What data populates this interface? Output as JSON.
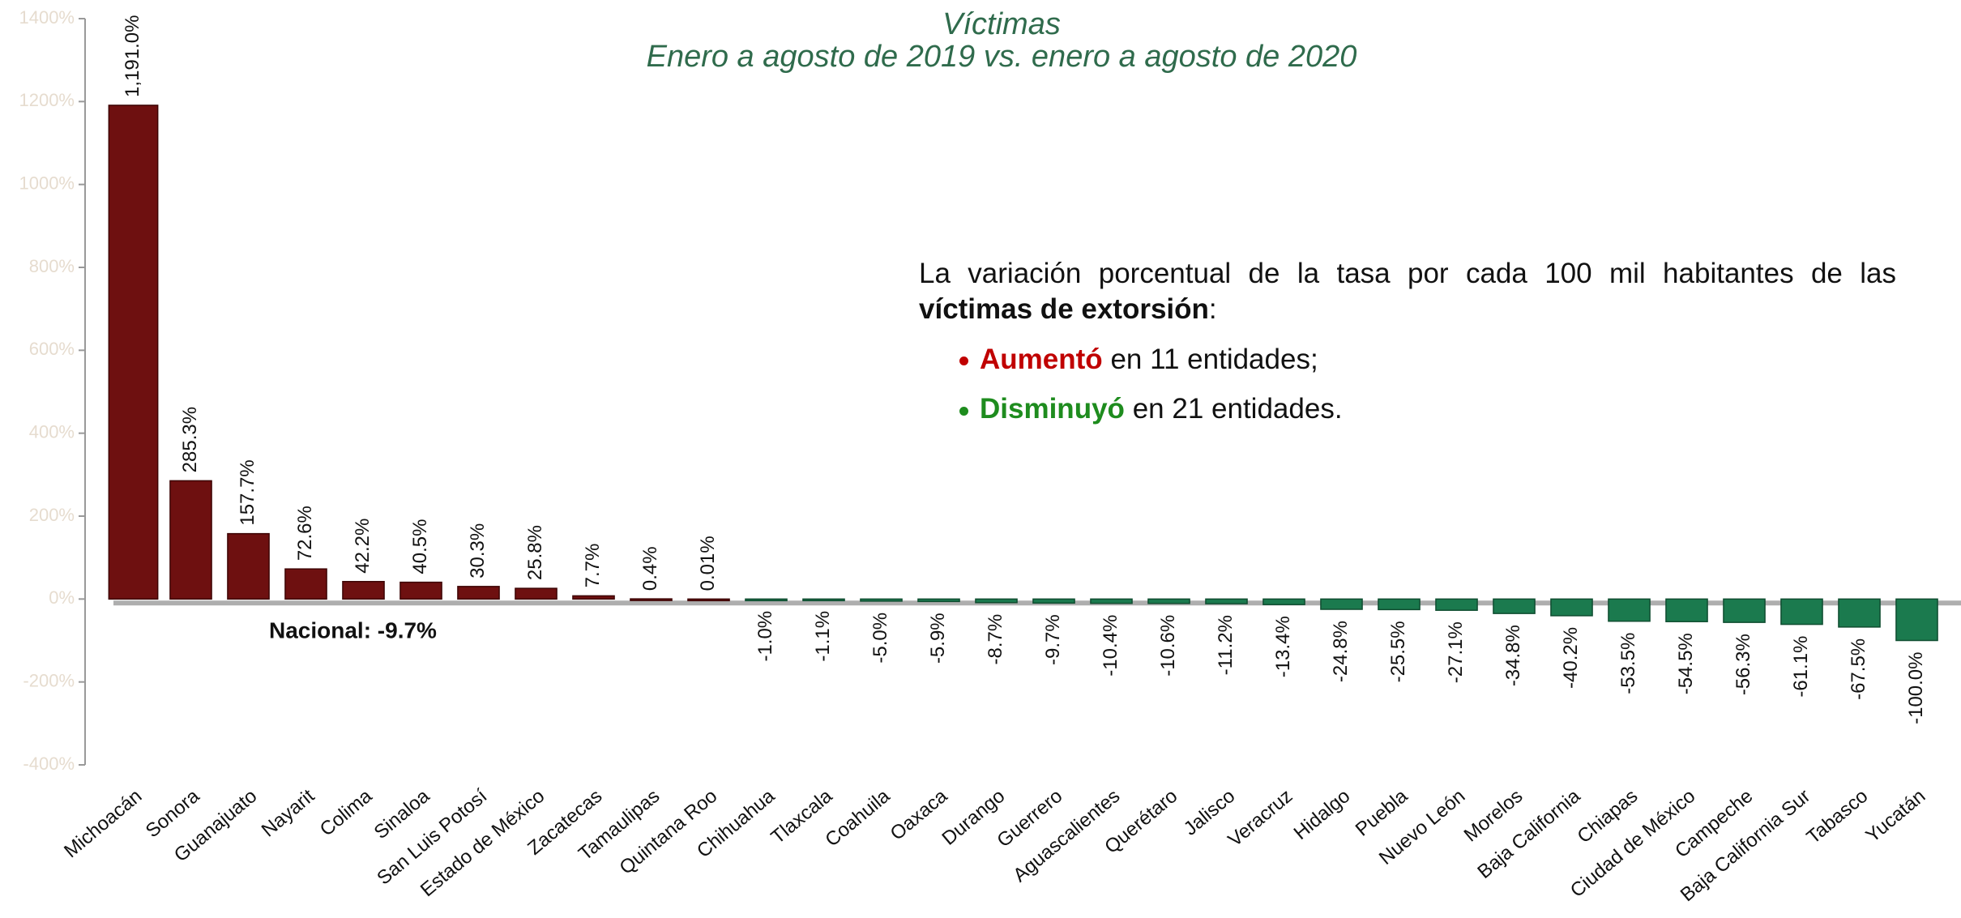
{
  "chart_data": {
    "type": "bar",
    "title": "Víctimas",
    "subtitle": "Enero a agosto de 2019 vs. enero a agosto de 2020",
    "categories": [
      "Michoacán",
      "Sonora",
      "Guanajuato",
      "Nayarit",
      "Colima",
      "Sinaloa",
      "San Luis Potosí",
      "Estado de México",
      "Zacatecas",
      "Tamaulipas",
      "Quintana Roo",
      "Chihuahua",
      "Tlaxcala",
      "Coahuila",
      "Oaxaca",
      "Durango",
      "Guerrero",
      "Aguascalientes",
      "Querétaro",
      "Jalisco",
      "Veracruz",
      "Hidalgo",
      "Puebla",
      "Nuevo León",
      "Morelos",
      "Baja California",
      "Chiapas",
      "Ciudad de México",
      "Campeche",
      "Baja California Sur",
      "Tabasco",
      "Yucatán"
    ],
    "values": [
      1191.0,
      285.3,
      157.7,
      72.6,
      42.2,
      40.5,
      30.3,
      25.8,
      7.7,
      0.4,
      0.01,
      -1.0,
      -1.1,
      -5.0,
      -5.9,
      -8.7,
      -9.7,
      -10.4,
      -10.6,
      -11.2,
      -13.4,
      -24.8,
      -25.5,
      -27.1,
      -34.8,
      -40.2,
      -53.5,
      -54.5,
      -56.3,
      -61.1,
      -67.5,
      -100.0
    ],
    "value_labels": [
      "1,191.0%",
      "285.3%",
      "157.7%",
      "72.6%",
      "42.2%",
      "40.5%",
      "30.3%",
      "25.8%",
      "7.7%",
      "0.4%",
      "0.01%",
      "-1.0%",
      "-1.1%",
      "-5.0%",
      "-5.9%",
      "-8.7%",
      "-9.7%",
      "-10.4%",
      "-10.6%",
      "-11.2%",
      "-13.4%",
      "-24.8%",
      "-25.5%",
      "-27.1%",
      "-34.8%",
      "-40.2%",
      "-53.5%",
      "-54.5%",
      "-56.3%",
      "-61.1%",
      "-67.5%",
      "-100.0%"
    ],
    "positive_color": "#6e1010",
    "negative_color": "#1b7a4e",
    "ylim": [
      -400,
      1400
    ],
    "yticks": [
      {
        "value": -400,
        "label": "-400%"
      },
      {
        "value": -200,
        "label": "-200%"
      },
      {
        "value": 0,
        "label": "0%"
      },
      {
        "value": 200,
        "label": "200%"
      },
      {
        "value": 400,
        "label": "400%"
      },
      {
        "value": 600,
        "label": "600%"
      },
      {
        "value": 800,
        "label": "800%"
      },
      {
        "value": 1000,
        "label": "1000%"
      },
      {
        "value": 1200,
        "label": "1200%"
      },
      {
        "value": 1400,
        "label": "1400%"
      }
    ],
    "reference_line": {
      "value": -9.7,
      "label": "Nacional: -9.7%"
    }
  },
  "note": {
    "intro": "La variación porcentual de la tasa por cada 100 mil habitantes de las",
    "intro_bold": "víctimas de extorsión",
    "intro_end": ":",
    "bullets": [
      {
        "bold": "Aumentó",
        "text": "en 11 entidades;",
        "color": "#c00000"
      },
      {
        "bold": "Disminuyó",
        "text": "en 21 entidades.",
        "color": "#1e8c1e"
      }
    ]
  }
}
